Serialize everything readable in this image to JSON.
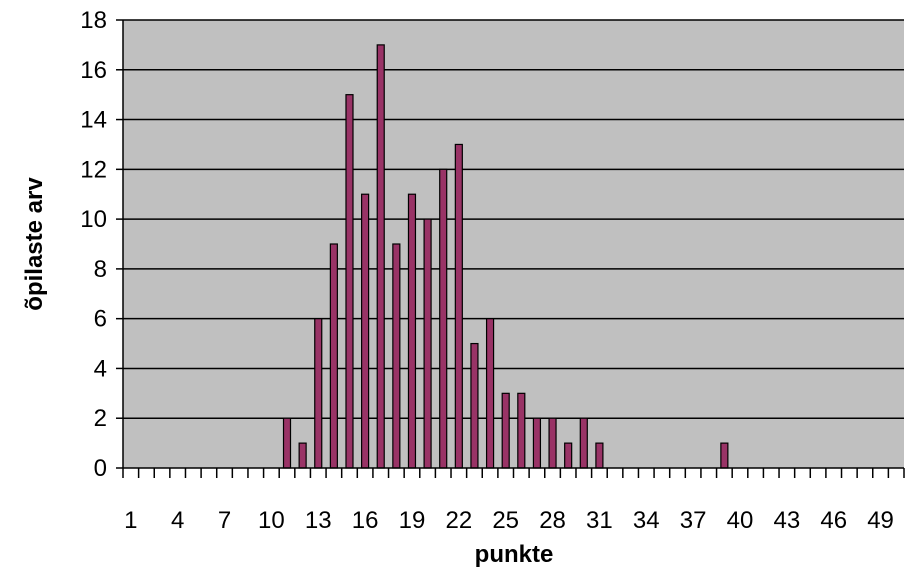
{
  "chart_data": {
    "type": "bar",
    "xlabel": "punkte",
    "ylabel": "õpilaste arv",
    "ylim": [
      0,
      18
    ],
    "yticks": [
      0,
      2,
      4,
      6,
      8,
      10,
      12,
      14,
      16,
      18
    ],
    "xlim": [
      1,
      50
    ],
    "xtick_labels": [
      "1",
      "4",
      "7",
      "10",
      "13",
      "16",
      "19",
      "22",
      "25",
      "28",
      "31",
      "34",
      "37",
      "40",
      "43",
      "46",
      "49"
    ],
    "grid": "horizontal",
    "legend": "none",
    "x": [
      1,
      2,
      3,
      4,
      5,
      6,
      7,
      8,
      9,
      10,
      11,
      12,
      13,
      14,
      15,
      16,
      17,
      18,
      19,
      20,
      21,
      22,
      23,
      24,
      25,
      26,
      27,
      28,
      29,
      30,
      31,
      32,
      33,
      34,
      35,
      36,
      37,
      38,
      39,
      40,
      41,
      42,
      43,
      44,
      45,
      46,
      47,
      48,
      49,
      50
    ],
    "values": [
      0,
      0,
      0,
      0,
      0,
      0,
      0,
      0,
      0,
      0,
      2,
      1,
      6,
      9,
      15,
      11,
      17,
      9,
      11,
      10,
      12,
      13,
      5,
      6,
      3,
      3,
      2,
      2,
      1,
      2,
      1,
      0,
      0,
      0,
      0,
      0,
      0,
      0,
      1,
      0,
      0,
      0,
      0,
      0,
      0,
      0,
      0,
      0,
      0,
      0
    ],
    "colors": {
      "plot_background": "#c0c0c0",
      "bar_fill": "#993366",
      "bar_stroke": "#000000",
      "gridline": "#000000"
    }
  }
}
